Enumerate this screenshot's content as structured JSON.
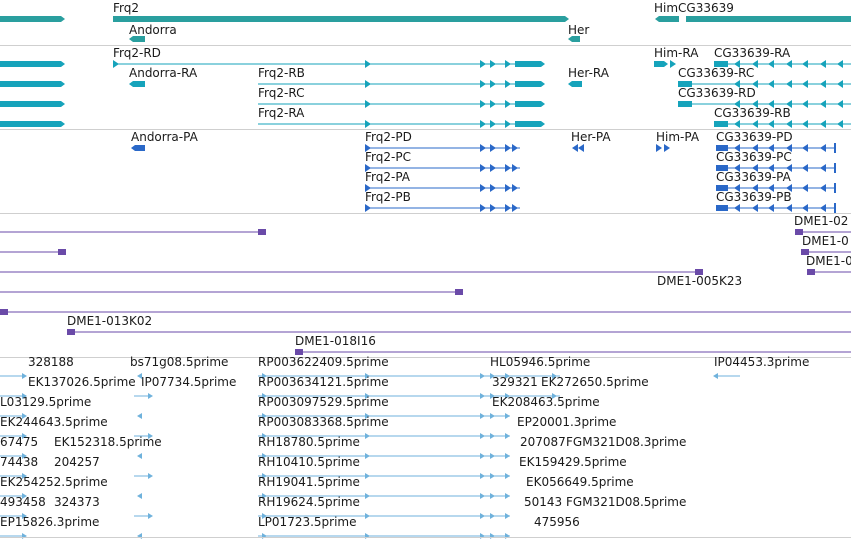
{
  "colors": {
    "track_gene": "#2a9f9f",
    "track_transcript": "#16a3bb",
    "track_protein": "#2a68c8",
    "track_clone": "#6a4aa8",
    "track_est": "#6fb2dc",
    "separator": "#cfcfcf"
  },
  "tracks": {
    "genes": {
      "features": [
        {
          "label": "Frq2"
        },
        {
          "label": "Andorra"
        },
        {
          "label": "Her"
        },
        {
          "label": "HimCG33639"
        }
      ]
    },
    "transcripts": {
      "features": [
        {
          "label": "Frq2-RD"
        },
        {
          "label": "Andorra-RA"
        },
        {
          "label": "Frq2-RB"
        },
        {
          "label": "Her-RA"
        },
        {
          "label": "Him-RA"
        },
        {
          "label": "CG33639-RA"
        },
        {
          "label": "CG33639-RC"
        },
        {
          "label": "Frq2-RC"
        },
        {
          "label": "CG33639-RD"
        },
        {
          "label": "Frq2-RA"
        },
        {
          "label": "CG33639-RB"
        }
      ]
    },
    "proteins": {
      "features": [
        {
          "label": "Andorra-PA"
        },
        {
          "label": "Frq2-PD"
        },
        {
          "label": "Her-PA"
        },
        {
          "label": "Him-PA"
        },
        {
          "label": "CG33639-PD"
        },
        {
          "label": "Frq2-PC"
        },
        {
          "label": "CG33639-PC"
        },
        {
          "label": "Frq2-PA"
        },
        {
          "label": "CG33639-PA"
        },
        {
          "label": "Frq2-PB"
        },
        {
          "label": "CG33639-PB"
        }
      ]
    },
    "clones": {
      "features": [
        {
          "label": "DME1-02"
        },
        {
          "label": "DME1-0"
        },
        {
          "label": "DME1-0"
        },
        {
          "label": "DME1-005K23"
        },
        {
          "label": "DME1-013K02"
        },
        {
          "label": "DME1-018I16"
        }
      ]
    },
    "ests": {
      "features": [
        {
          "label": "328188"
        },
        {
          "label": "bs71g08.5prime"
        },
        {
          "label": "RP003622409.5prime"
        },
        {
          "label": "HL05946.5prime"
        },
        {
          "label": "IP04453.3prime"
        },
        {
          "label": "EK137026.5prime"
        },
        {
          "label": "IP07734.5prime"
        },
        {
          "label": "RP003634121.5prime"
        },
        {
          "label": "329321"
        },
        {
          "label": "EK272650.5prime"
        },
        {
          "label": "L03129.5prime"
        },
        {
          "label": "RP003097529.5prime"
        },
        {
          "label": "EK208463.5prime"
        },
        {
          "label": "EK244643.5prime"
        },
        {
          "label": "RP003083368.5prime"
        },
        {
          "label": "EP20001.3prime"
        },
        {
          "label": "67475"
        },
        {
          "label": "EK152318.5prime"
        },
        {
          "label": "RH18780.5prime"
        },
        {
          "label": "207087"
        },
        {
          "label": "FGM321D08.3prime"
        },
        {
          "label": "74438"
        },
        {
          "label": "204257"
        },
        {
          "label": "RH10410.5prime"
        },
        {
          "label": "EK159429.5prime"
        },
        {
          "label": "EK254252.5prime"
        },
        {
          "label": "RH19041.5prime"
        },
        {
          "label": "EK056649.5prime"
        },
        {
          "label": "493458"
        },
        {
          "label": "324373"
        },
        {
          "label": "RH19624.5prime"
        },
        {
          "label": "50143"
        },
        {
          "label": "FGM321D08.5prime"
        },
        {
          "label": "EP15826.3prime"
        },
        {
          "label": "LP01723.5prime"
        },
        {
          "label": "475956"
        }
      ]
    }
  }
}
